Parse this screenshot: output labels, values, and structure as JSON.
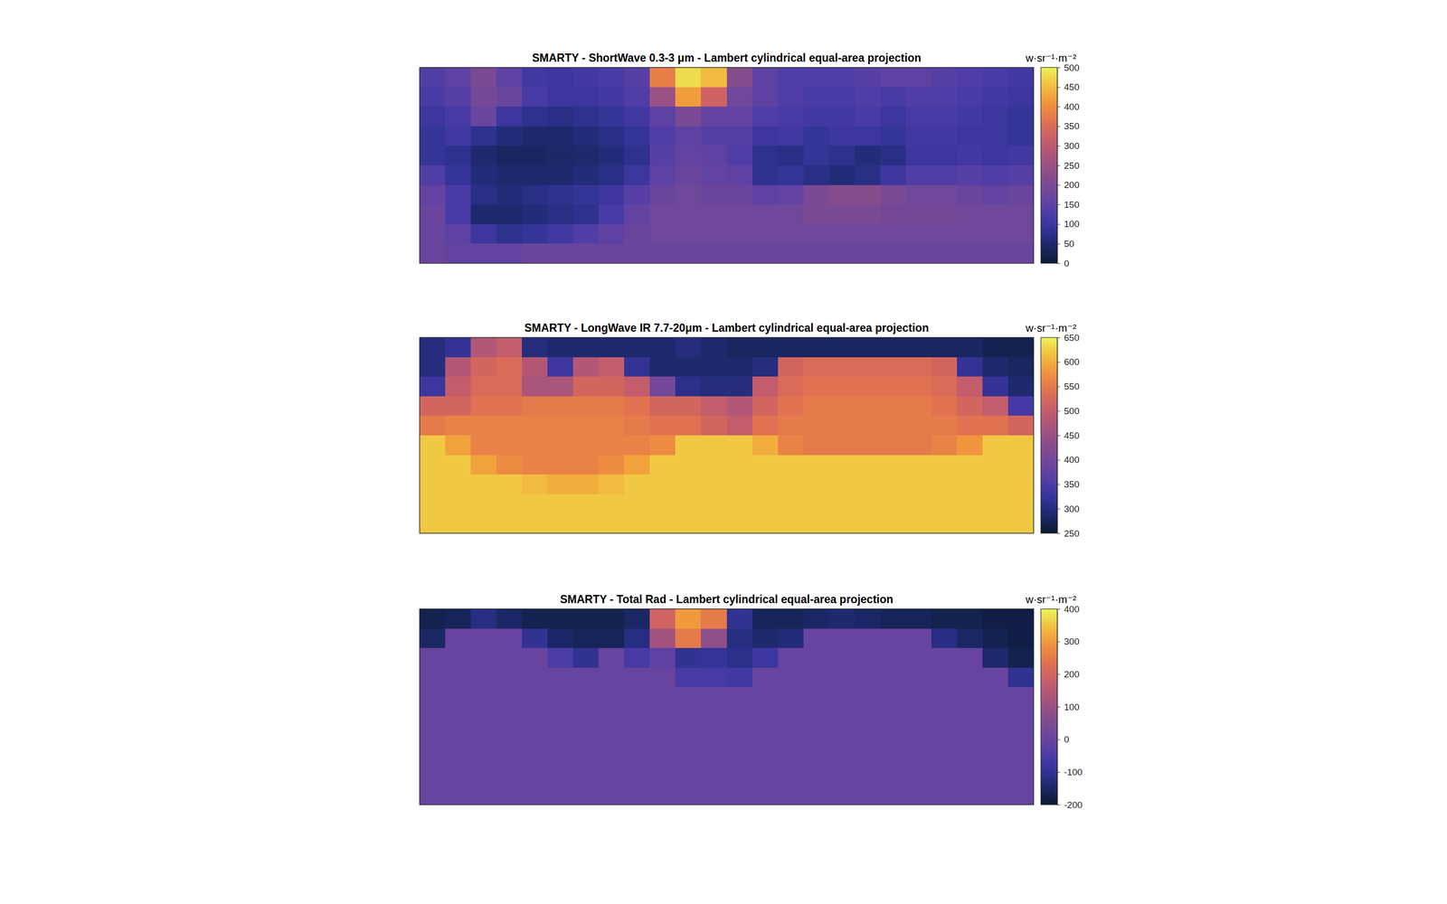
{
  "chart_data": [
    {
      "type": "heatmap",
      "title": "SMARTY - ShortWave 0.3-3 μm - Lambert cylindrical equal-area projection",
      "tick_labels": false,
      "color_label": "w·sr⁻¹·m⁻²",
      "color_range": [
        0,
        500
      ],
      "color_ticks": [
        0,
        50,
        100,
        150,
        200,
        250,
        300,
        350,
        400,
        450,
        500
      ],
      "cells": [
        [
          130,
          150,
          200,
          150,
          110,
          100,
          110,
          120,
          140,
          380,
          480,
          450,
          220,
          150,
          130,
          130,
          130,
          140,
          150,
          150,
          140,
          130,
          120,
          110
        ],
        [
          120,
          140,
          190,
          170,
          120,
          100,
          100,
          110,
          130,
          250,
          420,
          330,
          180,
          150,
          130,
          120,
          120,
          130,
          120,
          130,
          130,
          120,
          110,
          100
        ],
        [
          100,
          120,
          170,
          100,
          80,
          70,
          80,
          90,
          110,
          150,
          200,
          160,
          160,
          130,
          120,
          110,
          110,
          120,
          100,
          120,
          120,
          110,
          100,
          90
        ],
        [
          90,
          110,
          80,
          60,
          50,
          50,
          60,
          70,
          90,
          130,
          150,
          140,
          140,
          100,
          110,
          90,
          100,
          100,
          90,
          110,
          110,
          100,
          100,
          90
        ],
        [
          90,
          80,
          50,
          40,
          40,
          45,
          50,
          60,
          80,
          140,
          160,
          150,
          130,
          80,
          70,
          90,
          80,
          60,
          70,
          100,
          100,
          110,
          100,
          110
        ],
        [
          130,
          90,
          60,
          50,
          50,
          50,
          60,
          70,
          100,
          150,
          170,
          160,
          150,
          80,
          90,
          70,
          60,
          70,
          100,
          130,
          130,
          140,
          130,
          140
        ],
        [
          160,
          120,
          70,
          60,
          70,
          80,
          90,
          100,
          140,
          170,
          180,
          170,
          170,
          150,
          160,
          200,
          220,
          220,
          200,
          180,
          180,
          170,
          160,
          170
        ],
        [
          170,
          120,
          50,
          50,
          60,
          70,
          80,
          120,
          160,
          180,
          180,
          180,
          180,
          180,
          180,
          200,
          200,
          200,
          190,
          190,
          190,
          180,
          180,
          180
        ],
        [
          170,
          150,
          100,
          80,
          90,
          110,
          130,
          150,
          170,
          180,
          180,
          180,
          180,
          180,
          180,
          180,
          180,
          180,
          180,
          180,
          180,
          180,
          180,
          180
        ],
        [
          170,
          160,
          160,
          160,
          170,
          170,
          170,
          170,
          170,
          170,
          170,
          170,
          170,
          170,
          170,
          170,
          170,
          170,
          170,
          170,
          170,
          170,
          170,
          170
        ]
      ]
    },
    {
      "type": "heatmap",
      "title": "SMARTY - LongWave IR 7.7-20μm - Lambert cylindrical equal-area projection",
      "tick_labels": false,
      "color_label": "w·sr⁻¹·m⁻²",
      "color_range": [
        250,
        650
      ],
      "color_ticks": [
        250,
        300,
        350,
        400,
        450,
        500,
        550,
        600,
        650
      ],
      "cells": [
        [
          300,
          320,
          480,
          500,
          300,
          290,
          290,
          290,
          290,
          290,
          300,
          290,
          280,
          280,
          280,
          280,
          280,
          280,
          280,
          280,
          280,
          280,
          270,
          270
        ],
        [
          300,
          480,
          520,
          530,
          480,
          330,
          480,
          500,
          320,
          290,
          290,
          290,
          290,
          300,
          520,
          530,
          530,
          530,
          530,
          530,
          520,
          320,
          290,
          280
        ],
        [
          330,
          500,
          530,
          530,
          470,
          470,
          520,
          520,
          500,
          400,
          310,
          300,
          300,
          500,
          530,
          540,
          540,
          540,
          540,
          540,
          530,
          500,
          320,
          290
        ],
        [
          520,
          520,
          540,
          540,
          550,
          550,
          550,
          550,
          540,
          520,
          520,
          500,
          480,
          520,
          540,
          550,
          550,
          550,
          550,
          550,
          540,
          520,
          500,
          340
        ],
        [
          550,
          560,
          560,
          560,
          560,
          560,
          560,
          560,
          550,
          540,
          540,
          520,
          500,
          540,
          550,
          550,
          550,
          550,
          550,
          550,
          550,
          540,
          540,
          520
        ],
        [
          620,
          590,
          560,
          560,
          560,
          560,
          560,
          560,
          560,
          570,
          620,
          620,
          620,
          600,
          560,
          550,
          550,
          550,
          550,
          550,
          560,
          580,
          620,
          620
        ],
        [
          620,
          620,
          590,
          570,
          560,
          560,
          560,
          570,
          590,
          620,
          620,
          620,
          620,
          620,
          620,
          620,
          620,
          620,
          620,
          620,
          620,
          620,
          620,
          620
        ],
        [
          620,
          620,
          620,
          620,
          610,
          600,
          600,
          610,
          620,
          620,
          620,
          620,
          620,
          620,
          620,
          620,
          620,
          620,
          620,
          620,
          620,
          620,
          620,
          620
        ],
        [
          620,
          620,
          620,
          620,
          620,
          620,
          620,
          620,
          620,
          620,
          620,
          620,
          620,
          620,
          620,
          620,
          620,
          620,
          620,
          620,
          620,
          620,
          620,
          620
        ],
        [
          620,
          620,
          620,
          620,
          620,
          620,
          620,
          620,
          620,
          620,
          620,
          620,
          620,
          620,
          620,
          620,
          620,
          620,
          620,
          620,
          620,
          620,
          620,
          620
        ]
      ]
    },
    {
      "type": "heatmap",
      "title": "SMARTY - Total Rad - Lambert cylindrical equal-area projection",
      "tick_labels": false,
      "color_label": "w·sr⁻¹·m⁻²",
      "color_range": [
        -200,
        400
      ],
      "color_ticks": [
        -200,
        -100,
        0,
        100,
        200,
        300,
        400
      ],
      "cells": [
        [
          -170,
          -160,
          -120,
          -150,
          -170,
          -170,
          -170,
          -170,
          -150,
          200,
          300,
          250,
          -100,
          -160,
          -160,
          -150,
          -140,
          -150,
          -160,
          -160,
          -170,
          -170,
          -180,
          -180
        ],
        [
          -150,
          0,
          0,
          0,
          -100,
          -150,
          -160,
          -160,
          -120,
          120,
          250,
          80,
          -120,
          -140,
          -130,
          0,
          0,
          0,
          0,
          0,
          -120,
          -150,
          -170,
          -180
        ],
        [
          0,
          0,
          0,
          0,
          0,
          -50,
          -100,
          0,
          -60,
          -20,
          -100,
          -90,
          -110,
          -80,
          0,
          0,
          0,
          0,
          0,
          0,
          0,
          0,
          -140,
          -170
        ],
        [
          0,
          0,
          0,
          0,
          0,
          0,
          0,
          0,
          0,
          0,
          -60,
          -60,
          -70,
          0,
          0,
          0,
          0,
          0,
          0,
          0,
          0,
          0,
          0,
          -100
        ],
        [
          0,
          0,
          0,
          0,
          0,
          0,
          0,
          0,
          0,
          0,
          0,
          0,
          0,
          0,
          0,
          0,
          0,
          0,
          0,
          0,
          0,
          0,
          0,
          0
        ],
        [
          0,
          0,
          0,
          0,
          0,
          0,
          0,
          0,
          0,
          0,
          0,
          0,
          0,
          0,
          0,
          0,
          0,
          0,
          0,
          0,
          0,
          0,
          0,
          0
        ],
        [
          0,
          0,
          0,
          0,
          0,
          0,
          0,
          0,
          0,
          0,
          0,
          0,
          0,
          0,
          0,
          0,
          0,
          0,
          0,
          0,
          0,
          0,
          0,
          0
        ],
        [
          0,
          0,
          0,
          0,
          0,
          0,
          0,
          0,
          0,
          0,
          0,
          0,
          0,
          0,
          0,
          0,
          0,
          0,
          0,
          0,
          0,
          0,
          0,
          0
        ],
        [
          0,
          0,
          0,
          0,
          0,
          0,
          0,
          0,
          0,
          0,
          0,
          0,
          0,
          0,
          0,
          0,
          0,
          0,
          0,
          0,
          0,
          0,
          0,
          0
        ],
        [
          0,
          0,
          0,
          0,
          0,
          0,
          0,
          0,
          0,
          0,
          0,
          0,
          0,
          0,
          0,
          0,
          0,
          0,
          0,
          0,
          0,
          0,
          0,
          0
        ]
      ]
    }
  ]
}
